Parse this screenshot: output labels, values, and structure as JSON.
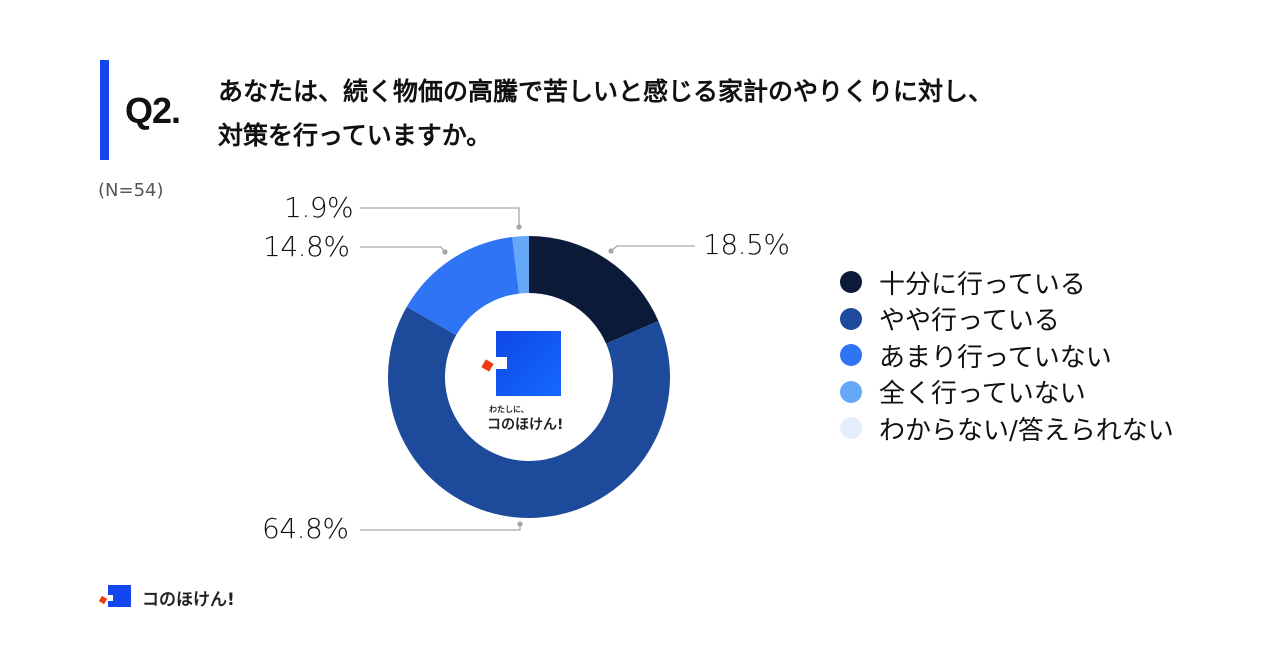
{
  "question": {
    "number": "Q2.",
    "line1": "あなたは、続く物価の高騰で苦しいと感じる家計のやりくりに対し、",
    "line2": "対策を行っていますか。",
    "accent_color": "#1446f0"
  },
  "sample_size": "(N=54)",
  "center_logo": {
    "tagline": "わたしに、",
    "brand": "コのほけん!"
  },
  "footer": {
    "brand": "コのほけん!"
  },
  "labels": {
    "s0": "18.5%",
    "s1": "64.8%",
    "s2": "14.8%",
    "s3": "1.9%"
  },
  "legend": [
    {
      "label": "十分に行っている",
      "color": "#0a1a38"
    },
    {
      "label": "やや行っている",
      "color": "#1e4a9c"
    },
    {
      "label": "あまり行っていない",
      "color": "#2e74f5"
    },
    {
      "label": "全く行っていない",
      "color": "#66a8f8"
    },
    {
      "label": "わからない/答えられない",
      "color": "#e4edfc"
    }
  ],
  "chart_data": {
    "type": "pie",
    "subtype": "donut",
    "title": "あなたは、続く物価の高騰で苦しいと感じる家計のやりくりに対し、対策を行っていますか。",
    "sample_size": 54,
    "categories": [
      "十分に行っている",
      "やや行っている",
      "あまり行っていない",
      "全く行っていない",
      "わからない/答えられない"
    ],
    "values": [
      18.5,
      64.8,
      14.8,
      1.9,
      0.0
    ],
    "unit": "%",
    "colors": [
      "#0a1a38",
      "#1e4a9c",
      "#2e74f5",
      "#66a8f8",
      "#e4edfc"
    ],
    "start_angle": "12 o'clock",
    "direction": "clockwise",
    "legend_position": "right",
    "data_labels": [
      "18.5%",
      "64.8%",
      "14.8%",
      "1.9%"
    ]
  }
}
